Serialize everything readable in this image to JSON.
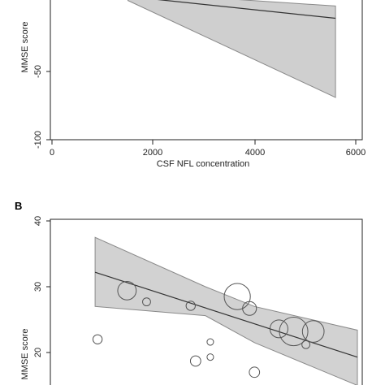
{
  "chart_data": [
    {
      "panel": "",
      "type": "line",
      "xlabel": "CSF NFL concentration",
      "ylabel": "MMSE score",
      "xlim": [
        -500,
        6500
      ],
      "ylim": [
        -100,
        0
      ],
      "xticks": [
        "0",
        "2000",
        "4000",
        "6000"
      ],
      "yticks": [
        "-100",
        "-50"
      ],
      "fit_line": {
        "x": [
          1500,
          5600
        ],
        "y": [
          5,
          -11
        ]
      },
      "ci_band": {
        "x": [
          1500,
          5600
        ],
        "upper": [
          8,
          -2
        ],
        "lower": [
          2,
          -69
        ]
      },
      "grid": false
    },
    {
      "panel": "B",
      "type": "scatter",
      "xlabel": "",
      "ylabel": "MMSE score",
      "xlim": [
        -200,
        5800
      ],
      "ylim": [
        14,
        40
      ],
      "yticks": [
        "40",
        "30",
        "20"
      ],
      "fit_line": {
        "x": [
          250,
          5600
        ],
        "y": [
          32.2,
          19.3
        ]
      },
      "ci_band": {
        "x": [
          250,
          2500,
          3500,
          5600
        ],
        "upper": [
          37.5,
          30.0,
          27.0,
          23.4
        ],
        "lower": [
          27.0,
          25.6,
          21.5,
          15.0
        ]
      },
      "points": [
        {
          "x": 900,
          "y": 29.4,
          "w": 1.6
        },
        {
          "x": 1300,
          "y": 27.7,
          "w": 0.3
        },
        {
          "x": 2200,
          "y": 27.1,
          "w": 0.4
        },
        {
          "x": 3150,
          "y": 28.5,
          "w": 3.2
        },
        {
          "x": 3400,
          "y": 26.7,
          "w": 0.9
        },
        {
          "x": 4000,
          "y": 23.6,
          "w": 1.5
        },
        {
          "x": 4300,
          "y": 23.2,
          "w": 3.8
        },
        {
          "x": 4700,
          "y": 23.2,
          "w": 2.2
        },
        {
          "x": 4550,
          "y": 21.2,
          "w": 0.3
        },
        {
          "x": 2600,
          "y": 21.6,
          "w": 0.2
        },
        {
          "x": 300,
          "y": 22.0,
          "w": 0.4
        },
        {
          "x": 2300,
          "y": 18.7,
          "w": 0.5
        },
        {
          "x": 2600,
          "y": 19.3,
          "w": 0.2
        },
        {
          "x": 3500,
          "y": 17.0,
          "w": 0.5
        }
      ],
      "grid": false
    }
  ]
}
